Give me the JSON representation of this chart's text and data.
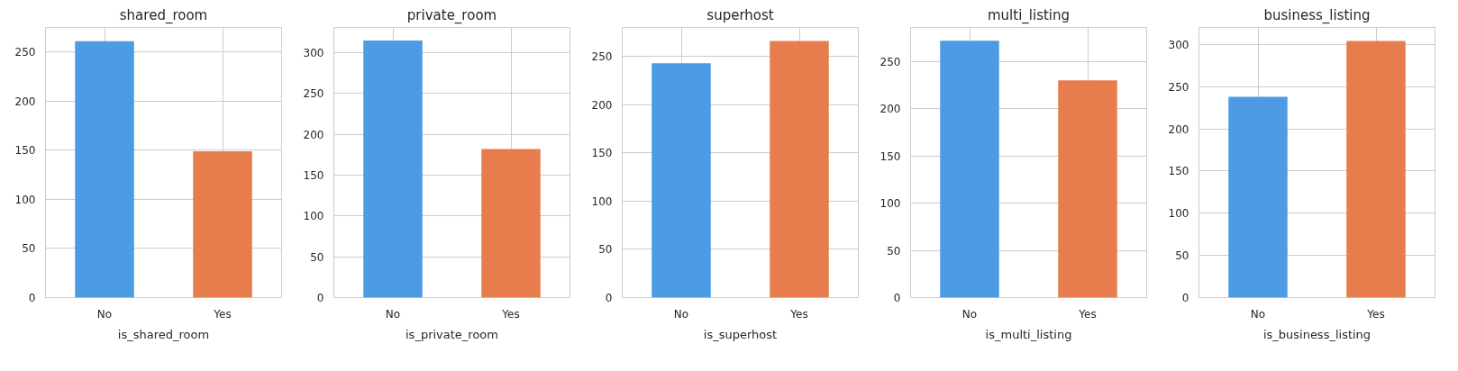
{
  "chart_data": [
    {
      "type": "bar",
      "title": "shared_room",
      "xlabel": "is_shared_room",
      "categories": [
        "No",
        "Yes"
      ],
      "values": [
        261,
        149
      ],
      "colors": [
        "#4c9be4",
        "#e77c4c"
      ],
      "ylim": [
        0,
        275
      ],
      "yticks": [
        0,
        50,
        100,
        150,
        200,
        250
      ],
      "grid": true
    },
    {
      "type": "bar",
      "title": "private_room",
      "xlabel": "is_private_room",
      "categories": [
        "No",
        "Yes"
      ],
      "values": [
        315,
        182
      ],
      "colors": [
        "#4c9be4",
        "#e77c4c"
      ],
      "ylim": [
        0,
        331
      ],
      "yticks": [
        0,
        50,
        100,
        150,
        200,
        250,
        300
      ],
      "grid": true
    },
    {
      "type": "bar",
      "title": "superhost",
      "xlabel": "is_superhost",
      "categories": [
        "No",
        "Yes"
      ],
      "values": [
        243,
        266
      ],
      "colors": [
        "#4c9be4",
        "#e77c4c"
      ],
      "ylim": [
        0,
        280
      ],
      "yticks": [
        0,
        50,
        100,
        150,
        200,
        250
      ],
      "grid": true
    },
    {
      "type": "bar",
      "title": "multi_listing",
      "xlabel": "is_multi_listing",
      "categories": [
        "No",
        "Yes"
      ],
      "values": [
        272,
        230
      ],
      "colors": [
        "#4c9be4",
        "#e77c4c"
      ],
      "ylim": [
        0,
        286
      ],
      "yticks": [
        0,
        50,
        100,
        150,
        200,
        250
      ],
      "grid": true
    },
    {
      "type": "bar",
      "title": "business_listing",
      "xlabel": "is_business_listing",
      "categories": [
        "No",
        "Yes"
      ],
      "values": [
        238,
        304
      ],
      "colors": [
        "#4c9be4",
        "#e77c4c"
      ],
      "ylim": [
        0,
        320
      ],
      "yticks": [
        0,
        50,
        100,
        150,
        200,
        250,
        300
      ],
      "grid": true
    }
  ]
}
